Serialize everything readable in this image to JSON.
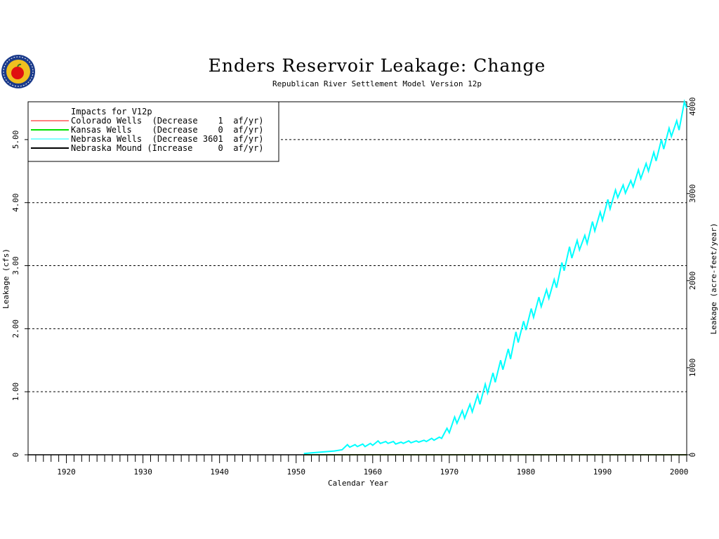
{
  "chart_data": {
    "type": "line",
    "title": "Enders Reservoir Leakage: Change",
    "subtitle": "Republican River Settlement Model Version 12p",
    "xlabel": "Calendar Year",
    "ylabel": "Leakage (cfs)",
    "y2label": "Leakage (acre-feet/year)",
    "xlim": [
      1915,
      2001
    ],
    "ylim": [
      0,
      5.6
    ],
    "y2lim": [
      0,
      4054
    ],
    "x_ticks": [
      1920,
      1930,
      1940,
      1950,
      1960,
      1970,
      1980,
      1990,
      2000
    ],
    "y_ticks": [
      0,
      1,
      2,
      3,
      4,
      5
    ],
    "y_tick_labels": [
      "0",
      "1.00",
      "2.00",
      "3.00",
      "4.00",
      "5.00"
    ],
    "y2_ticks": [
      0,
      1000,
      2000,
      3000,
      4000
    ],
    "grid": "horizontal dashed",
    "legend_position": "top-left",
    "legend_title": "Impacts for V12p",
    "series": [
      {
        "name": "Colorado Wells",
        "legend_text": "Colorado Wells  (Decrease    1  af/yr)",
        "color": "#ff0000",
        "x": [
          1951,
          2001
        ],
        "y": [
          0.0,
          0.0
        ]
      },
      {
        "name": "Kansas Wells",
        "legend_text": "Kansas Wells    (Decrease    0  af/yr)",
        "color": "#00e000",
        "x": [
          1951,
          2001
        ],
        "y": [
          0.0,
          0.0
        ]
      },
      {
        "name": "Nebraska Wells",
        "legend_text": "Nebraska Wells  (Decrease 3601  af/yr)",
        "color": "#00ffff",
        "x": [
          1951,
          1952,
          1953,
          1954,
          1955,
          1956,
          1956.7,
          1957,
          1957.7,
          1958,
          1958.7,
          1959,
          1959.7,
          1960,
          1960.7,
          1961,
          1961.7,
          1962,
          1962.7,
          1963,
          1963.7,
          1964,
          1964.7,
          1965,
          1965.7,
          1966,
          1966.7,
          1967,
          1967.7,
          1968,
          1968.7,
          1969,
          1969.7,
          1970,
          1970.7,
          1971,
          1971.7,
          1972,
          1972.7,
          1973,
          1973.7,
          1974,
          1974.7,
          1975,
          1975.7,
          1976,
          1976.7,
          1977,
          1977.7,
          1978,
          1978.7,
          1979,
          1979.7,
          1980,
          1980.7,
          1981,
          1981.7,
          1982,
          1982.7,
          1983,
          1983.7,
          1984,
          1984.7,
          1985,
          1985.7,
          1986,
          1986.7,
          1987,
          1987.7,
          1988,
          1988.7,
          1989,
          1989.7,
          1990,
          1990.7,
          1991,
          1991.7,
          1992,
          1992.7,
          1993,
          1993.7,
          1994,
          1994.7,
          1995,
          1995.7,
          1996,
          1996.7,
          1997,
          1997.7,
          1998,
          1998.7,
          1999,
          1999.7,
          2000,
          2000.7,
          2001
        ],
        "y": [
          0.02,
          0.03,
          0.04,
          0.05,
          0.06,
          0.08,
          0.16,
          0.12,
          0.16,
          0.13,
          0.17,
          0.13,
          0.18,
          0.15,
          0.22,
          0.18,
          0.21,
          0.18,
          0.21,
          0.17,
          0.2,
          0.18,
          0.22,
          0.19,
          0.22,
          0.2,
          0.23,
          0.21,
          0.26,
          0.23,
          0.28,
          0.26,
          0.42,
          0.35,
          0.6,
          0.5,
          0.7,
          0.58,
          0.8,
          0.68,
          0.95,
          0.8,
          1.12,
          0.98,
          1.3,
          1.15,
          1.5,
          1.35,
          1.68,
          1.52,
          1.95,
          1.78,
          2.12,
          1.98,
          2.32,
          2.18,
          2.5,
          2.35,
          2.62,
          2.48,
          2.78,
          2.65,
          3.05,
          2.92,
          3.3,
          3.12,
          3.4,
          3.25,
          3.48,
          3.35,
          3.7,
          3.55,
          3.85,
          3.72,
          4.05,
          3.9,
          4.2,
          4.08,
          4.28,
          4.15,
          4.35,
          4.25,
          4.52,
          4.38,
          4.62,
          4.5,
          4.8,
          4.66,
          5.0,
          4.85,
          5.18,
          5.05,
          5.3,
          5.15,
          5.6,
          5.5
        ]
      },
      {
        "name": "Nebraska Mound",
        "legend_text": "Nebraska Mound (Increase     0  af/yr)",
        "color": "#000000",
        "x": [
          1915,
          2001
        ],
        "y": [
          0.0,
          0.0
        ]
      }
    ]
  },
  "logo": {
    "name": "agency-seal-logo",
    "colors": {
      "ring": "#1a3a8a",
      "inner": "#f0c020",
      "apple": "#e01010"
    }
  }
}
